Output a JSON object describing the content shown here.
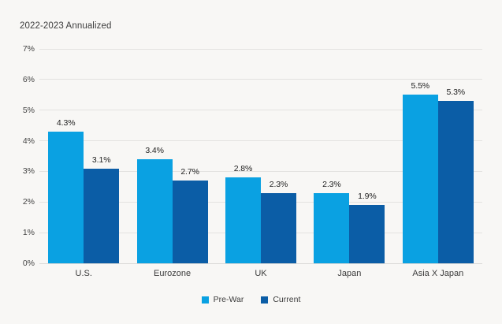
{
  "chart_data": {
    "type": "bar",
    "title": "2022-2023 Annualized",
    "categories": [
      "U.S.",
      "Eurozone",
      "UK",
      "Japan",
      "Asia X Japan"
    ],
    "series": [
      {
        "name": "Pre-War",
        "color": "#0AA1E2",
        "values": [
          4.3,
          3.4,
          2.8,
          2.3,
          5.5
        ],
        "labels": [
          "4.3%",
          "3.4%",
          "2.8%",
          "2.3%",
          "5.5%"
        ]
      },
      {
        "name": "Current",
        "color": "#0B5DA6",
        "values": [
          3.1,
          2.7,
          2.3,
          1.9,
          5.3
        ],
        "labels": [
          "3.1%",
          "2.7%",
          "2.3%",
          "1.9%",
          "5.3%"
        ]
      }
    ],
    "xlabel": "",
    "ylabel": "",
    "ylim": [
      0,
      7
    ],
    "y_ticks": [
      0,
      1,
      2,
      3,
      4,
      5,
      6,
      7
    ],
    "y_tick_labels": [
      "0%",
      "1%",
      "2%",
      "3%",
      "4%",
      "5%",
      "6%",
      "7%"
    ],
    "grid": true,
    "legend_position": "bottom",
    "colors": {
      "background": "#F8F7F5",
      "gridline": "#E3E2E0",
      "text": "#3C3C3C",
      "label_text": "#222222"
    }
  }
}
